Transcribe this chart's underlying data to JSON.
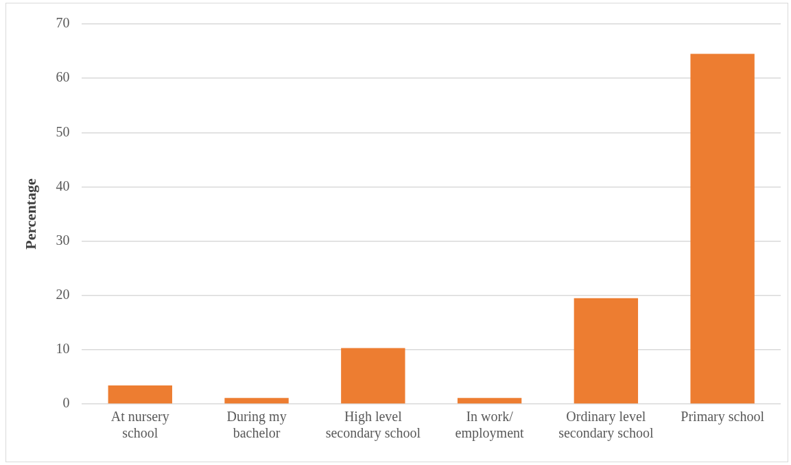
{
  "chart_data": {
    "type": "bar",
    "ylabel": "Percentage",
    "categories": [
      "At nursery\nschool",
      "During my\nbachelor",
      "High level\nsecondary school",
      "In work/\nemployment",
      "Ordinary level\nsecondary school",
      "Primary school"
    ],
    "values": [
      3.4,
      1.1,
      10.3,
      1.1,
      19.5,
      64.5
    ],
    "color": "#ed7d31",
    "ylim": [
      0,
      70
    ],
    "yticks": [
      0,
      10,
      20,
      30,
      40,
      50,
      60,
      70
    ],
    "grid": "y",
    "legend": false
  }
}
